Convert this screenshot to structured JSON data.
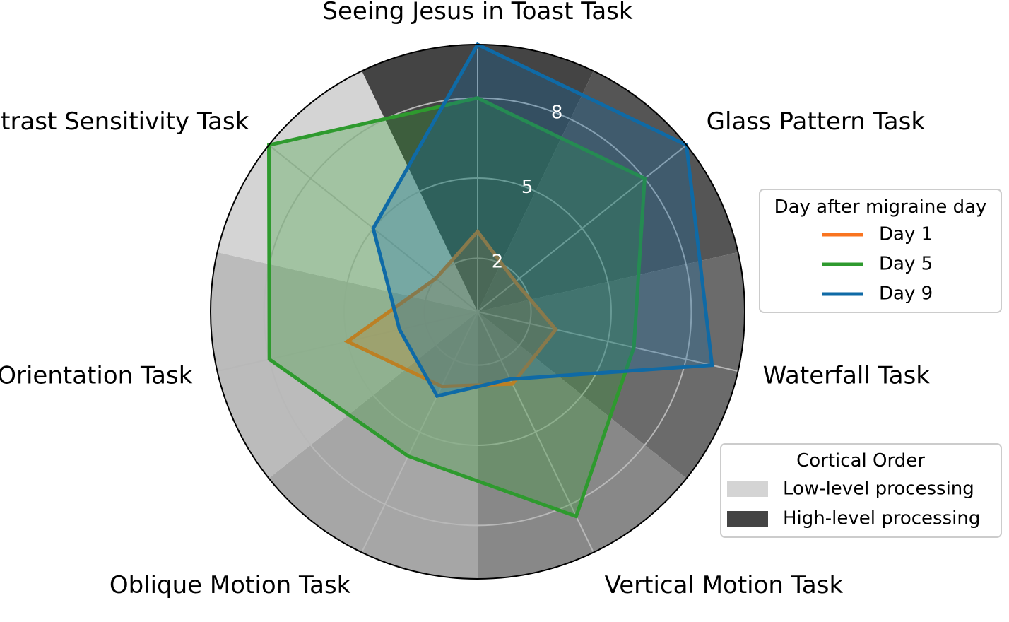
{
  "chart_data": {
    "type": "radar",
    "axes": [
      "Seeing Jesus in Toast Task",
      "Glass Pattern Task",
      "Waterfall Task",
      "Vertical Motion Task",
      "Oblique Motion Task",
      "Orientation Task",
      "Contrast Sensitivity Task"
    ],
    "axis_levels": [
      "high",
      "high",
      "high",
      "high",
      "low",
      "low",
      "low"
    ],
    "radial_ticks": [
      2,
      5,
      8
    ],
    "radial_tick_labels": [
      "2",
      "5",
      "8"
    ],
    "rlim": [
      0,
      10
    ],
    "series": [
      {
        "name": "Day 1",
        "color": "#f97420",
        "values": [
          3.0,
          1.8,
          3.0,
          3.0,
          3.1,
          5.0,
          2.0
        ]
      },
      {
        "name": "Day 5",
        "color": "#2e9a2e",
        "values": [
          8.0,
          8.0,
          6.0,
          8.5,
          6.0,
          8.0,
          10.0
        ]
      },
      {
        "name": "Day 9",
        "color": "#0f6aa6",
        "values": [
          10.0,
          10.0,
          9.0,
          2.8,
          3.5,
          3.0,
          5.0
        ]
      }
    ],
    "legend_series": {
      "title": "Day after migraine day",
      "entries": [
        "Day 1",
        "Day 5",
        "Day 9"
      ],
      "placement": "right"
    },
    "legend_order": {
      "title": "Cortical Order",
      "entries": [
        {
          "label": "Low-level processing",
          "color": "#d4d4d4"
        },
        {
          "label": "High-level processing",
          "color": "#444444"
        }
      ],
      "placement": "bottom-right"
    },
    "grid": true
  }
}
